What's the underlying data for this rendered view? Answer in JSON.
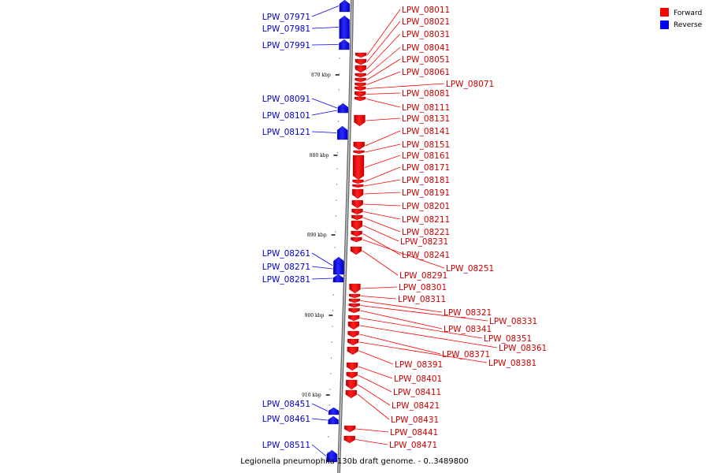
{
  "caption": "Legionella pneumophila 130b draft genome. - 0..3489800",
  "legend": {
    "forward_label": "Forward",
    "reverse_label": "Reverse",
    "forward_color": "#ff0000",
    "reverse_color": "#0000ff"
  },
  "scale_ticks": [
    {
      "label": "870 kbp"
    },
    {
      "label": "880 kbp"
    },
    {
      "label": "890 kbp"
    },
    {
      "label": "900 kbp"
    },
    {
      "label": "910 kbp"
    }
  ],
  "reverse_genes": [
    "LPW_07971",
    "LPW_07981",
    "LPW_07991",
    "LPW_08091",
    "LPW_08101",
    "LPW_08121",
    "LPW_08261",
    "LPW_08271",
    "LPW_08281",
    "LPW_08451",
    "LPW_08461",
    "LPW_08511"
  ],
  "forward_genes": [
    "LPW_08011",
    "LPW_08021",
    "LPW_08031",
    "LPW_08041",
    "LPW_08051",
    "LPW_08061",
    "LPW_08071",
    "LPW_08081",
    "LPW_08111",
    "LPW_08131",
    "LPW_08141",
    "LPW_08151",
    "LPW_08161",
    "LPW_08171",
    "LPW_08181",
    "LPW_08191",
    "LPW_08201",
    "LPW_08211",
    "LPW_08221",
    "LPW_08231",
    "LPW_08241",
    "LPW_08251",
    "LPW_08291",
    "LPW_08301",
    "LPW_08311",
    "LPW_08321",
    "LPW_08331",
    "LPW_08341",
    "LPW_08351",
    "LPW_08361",
    "LPW_08371",
    "LPW_08381",
    "LPW_08391",
    "LPW_08401",
    "LPW_08411",
    "LPW_08421",
    "LPW_08431",
    "LPW_08441",
    "LPW_08471"
  ]
}
